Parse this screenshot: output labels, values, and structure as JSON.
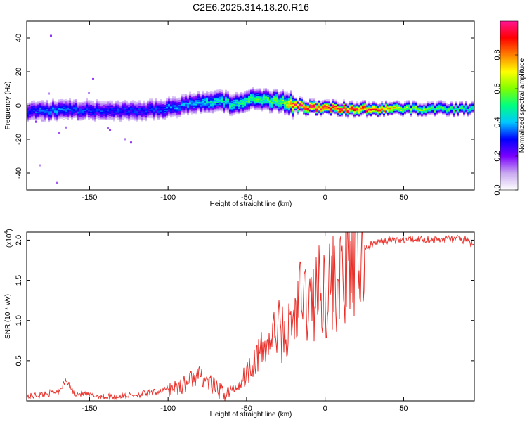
{
  "title": "C2E6.2025.314.18.20.R16",
  "chart_data": [
    {
      "type": "heatmap",
      "name": "spectrogram",
      "xlabel": "Height of straight line (km)",
      "ylabel": "Frequency (Hz)",
      "xlim": [
        -190,
        95
      ],
      "ylim": [
        -50,
        50
      ],
      "xticks": [
        -150,
        -100,
        -50,
        0,
        50
      ],
      "yticks": [
        -40,
        -20,
        0,
        20,
        40
      ],
      "ridge": {
        "x": [
          -190,
          -170,
          -150,
          -130,
          -110,
          -100,
          -90,
          -80,
          -70,
          -60,
          -50,
          -40,
          -30,
          -25,
          -20,
          -10,
          0,
          10,
          30,
          50,
          70,
          95
        ],
        "freq": [
          -3,
          -3,
          -2.5,
          -3,
          -2.5,
          -1.5,
          0,
          2,
          3,
          1,
          3,
          4,
          2,
          2,
          0,
          -1,
          -1,
          -2,
          -2,
          -2,
          -2,
          -2
        ],
        "amplitude": [
          0.3,
          0.35,
          0.3,
          0.3,
          0.3,
          0.35,
          0.35,
          0.4,
          0.45,
          0.45,
          0.5,
          0.5,
          0.55,
          0.6,
          0.95,
          0.95,
          0.9,
          0.9,
          0.85,
          0.6,
          0.55,
          0.45
        ]
      },
      "colorbar": {
        "label": "Normalized spectral amplitude",
        "ticks": [
          "0.0",
          "0.2",
          "0.4",
          "0.6",
          "0.8"
        ],
        "tick_values": [
          0,
          0.2,
          0.4,
          0.6,
          0.8
        ],
        "range": [
          0,
          1
        ],
        "colors": [
          "#ffffff",
          "#c8a8f0",
          "#7b00ff",
          "#0000ff",
          "#00c8ff",
          "#00ff80",
          "#80ff00",
          "#ffff00",
          "#ff8000",
          "#ff0000",
          "#ff1493"
        ]
      }
    },
    {
      "type": "line",
      "name": "snr",
      "xlabel": "Height of straight line (km)",
      "ylabel": "SNR (10 * v/v)",
      "scale_label": "(x10",
      "scale_exponent": "4",
      "scale_suffix": ")",
      "xlim": [
        -190,
        95
      ],
      "ylim": [
        0,
        2.1
      ],
      "xticks": [
        -150,
        -100,
        -50,
        0,
        50
      ],
      "yticks": [
        0.5,
        1.0,
        1.5,
        2.0
      ],
      "ytick_labels": [
        "0.5",
        "1.0",
        "1.5",
        "2.0"
      ],
      "color": "#e8302a",
      "x": [
        -190,
        -180,
        -170,
        -165,
        -160,
        -150,
        -140,
        -130,
        -120,
        -110,
        -100,
        -95,
        -90,
        -85,
        -80,
        -75,
        -70,
        -65,
        -60,
        -55,
        -50,
        -45,
        -40,
        -35,
        -30,
        -25,
        -20,
        -15,
        -10,
        -5,
        0,
        5,
        10,
        15,
        20,
        25,
        30,
        40,
        50,
        60,
        70,
        80,
        90,
        95
      ],
      "y": [
        0.05,
        0.08,
        0.12,
        0.25,
        0.1,
        0.07,
        0.05,
        0.06,
        0.08,
        0.1,
        0.15,
        0.18,
        0.2,
        0.28,
        0.32,
        0.25,
        0.15,
        0.1,
        0.12,
        0.2,
        0.35,
        0.55,
        0.6,
        0.75,
        0.9,
        0.8,
        1.0,
        1.3,
        1.2,
        1.35,
        1.4,
        1.45,
        1.5,
        1.65,
        1.75,
        1.9,
        1.95,
        2.0,
        2.0,
        2.02,
        2.0,
        2.02,
        2.0,
        1.92
      ]
    }
  ]
}
